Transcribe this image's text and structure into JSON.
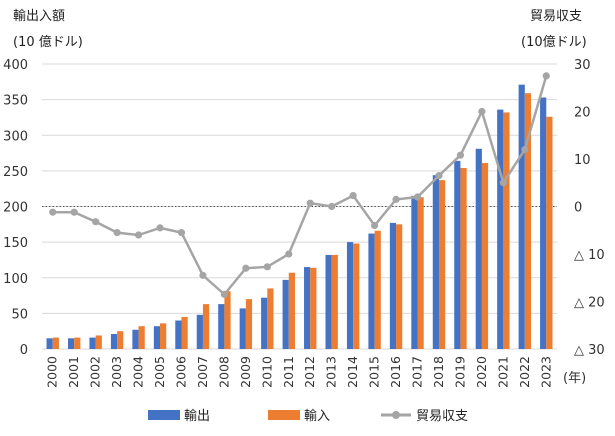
{
  "chart_data": {
    "type": "bar+line",
    "left_axis_title": "輸出入額",
    "left_axis_unit": "(10 億ドル)",
    "right_axis_title": "貿易収支",
    "right_axis_unit": "(10億ドル)",
    "x_unit": "(年)",
    "categories": [
      "2000",
      "2001",
      "2002",
      "2003",
      "2004",
      "2005",
      "2006",
      "2007",
      "2008",
      "2009",
      "2010",
      "2011",
      "2012",
      "2013",
      "2014",
      "2015",
      "2016",
      "2017",
      "2018",
      "2019",
      "2020",
      "2021",
      "2022",
      "2023"
    ],
    "left_ylim": [
      0,
      400
    ],
    "left_ticks": [
      "0",
      "50",
      "100",
      "150",
      "200",
      "250",
      "300",
      "350",
      "400"
    ],
    "right_ylim": [
      -30,
      30
    ],
    "right_ticks": [
      "△ 30",
      "△ 20",
      "△ 10",
      "0",
      "10",
      "20",
      "30"
    ],
    "series": [
      {
        "name": "輸出",
        "type": "bar",
        "color": "#4472C4",
        "values": [
          15,
          15,
          16,
          21,
          27,
          32,
          40,
          48,
          63,
          57,
          72,
          97,
          115,
          132,
          150,
          162,
          177,
          215,
          244,
          264,
          281,
          336,
          371,
          353
        ]
      },
      {
        "name": "輸入",
        "type": "bar",
        "color": "#ED7D31",
        "values": [
          16,
          16,
          19,
          25,
          32,
          36,
          45,
          63,
          81,
          70,
          85,
          107,
          114,
          132,
          148,
          166,
          175,
          213,
          237,
          254,
          261,
          332,
          359,
          326
        ]
      },
      {
        "name": "貿易収支",
        "type": "line",
        "color": "#A5A5A5",
        "values": [
          -1.2,
          -1.2,
          -3.2,
          -5.5,
          -6.0,
          -4.5,
          -5.5,
          -14.5,
          -18.5,
          -13.0,
          -12.7,
          -10.0,
          0.7,
          0.0,
          2.3,
          -4.0,
          1.5,
          2.0,
          6.5,
          10.8,
          20.0,
          5.0,
          12.0,
          27.5
        ]
      }
    ],
    "legend_position": "bottom",
    "zero_reference_line": "dotted"
  }
}
